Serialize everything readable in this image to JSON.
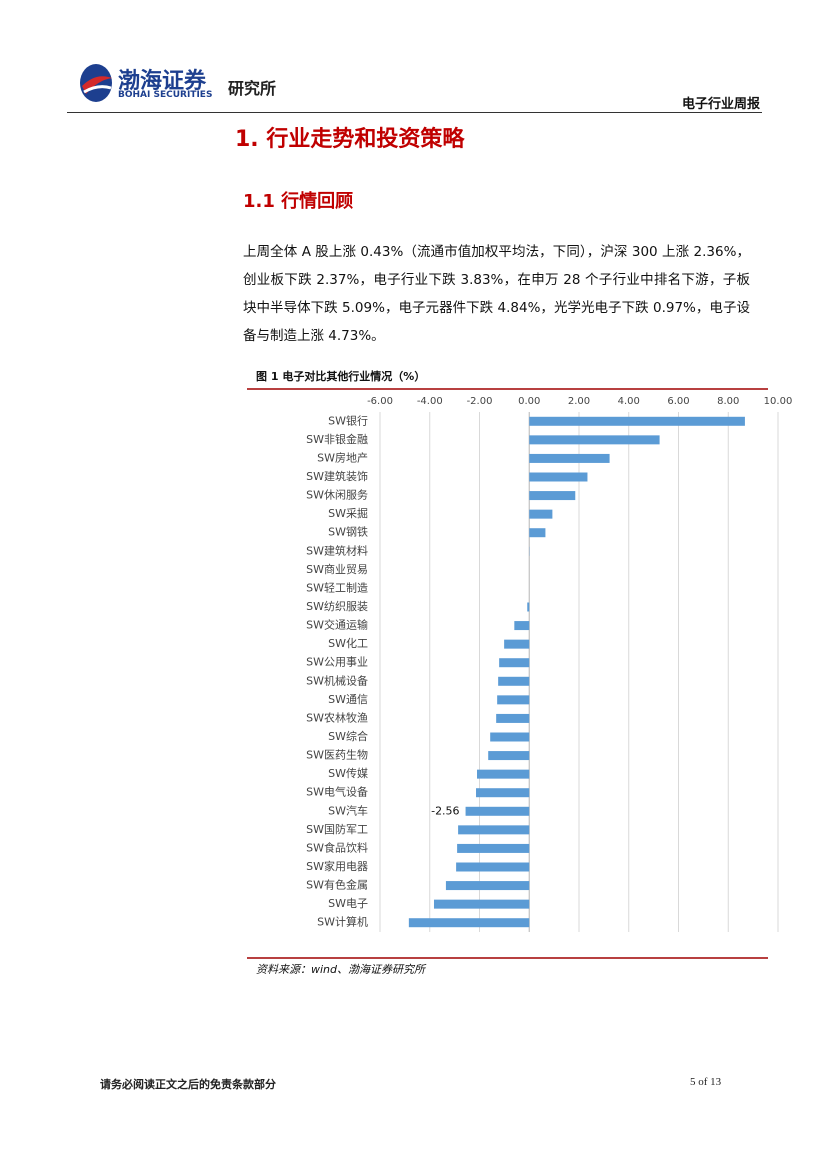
{
  "header": {
    "logo_name": "渤海证券",
    "logo_english": "BOHAI SECURITIES",
    "institute": "研究所",
    "report_type": "电子行业周报"
  },
  "section": {
    "title": "1. 行业走势和投资策略",
    "subtitle": "1.1 行情回顾",
    "paragraph": "上周全体 A 股上涨 0.43%（流通市值加权平均法，下同），沪深 300 上涨 2.36%，创业板下跌 2.37%，电子行业下跌 3.83%，在申万 28 个子行业中排名下游，子板块中半导体下跌 5.09%，电子元器件下跌 4.84%，光学光电子下跌 0.97%，电子设备与制造上涨 4.73%。"
  },
  "chart_data": {
    "type": "bar",
    "orientation": "horizontal",
    "title": "图 1 电子对比其他行业情况（%）",
    "color": "#5b9bd5",
    "grid": true,
    "categories": [
      "SW银行",
      "SW非银金融",
      "SW房地产",
      "SW建筑装饰",
      "SW休闲服务",
      "SW采掘",
      "SW钢铁",
      "SW建筑材料",
      "SW商业贸易",
      "SW轻工制造",
      "SW纺织服装",
      "SW交通运输",
      "SW化工",
      "SW公用事业",
      "SW机械设备",
      "SW通信",
      "SW农林牧渔",
      "SW综合",
      "SW医药生物",
      "SW传媒",
      "SW电气设备",
      "SW汽车",
      "SW国防军工",
      "SW食品饮料",
      "SW家用电器",
      "SW有色金属",
      "SW电子",
      "SW计算机"
    ],
    "values": [
      8.67,
      5.24,
      3.23,
      2.34,
      1.85,
      0.93,
      0.65,
      0.01,
      0,
      0,
      -0.08,
      -0.6,
      -1.01,
      -1.21,
      -1.25,
      -1.29,
      -1.33,
      -1.57,
      -1.65,
      -2.1,
      -2.14,
      -2.56,
      -2.86,
      -2.9,
      -2.94,
      -3.35,
      -3.83,
      -4.84
    ],
    "value_labels": [
      null,
      null,
      null,
      null,
      null,
      null,
      null,
      null,
      null,
      null,
      null,
      null,
      null,
      null,
      null,
      null,
      null,
      null,
      null,
      null,
      null,
      "-2.56",
      null,
      null,
      null,
      null,
      null,
      null
    ],
    "xlim": [
      -6,
      10
    ],
    "xticks": [
      {
        "value": -6,
        "label": "-6.00"
      },
      {
        "value": -4,
        "label": "-4.00"
      },
      {
        "value": -2,
        "label": "-2.00"
      },
      {
        "value": 0,
        "label": "0.00"
      },
      {
        "value": 2,
        "label": "2.00"
      },
      {
        "value": 4,
        "label": "4.00"
      },
      {
        "value": 6,
        "label": "6.00"
      },
      {
        "value": 8,
        "label": "8.00"
      },
      {
        "value": 10,
        "label": "10.00"
      }
    ],
    "source": "资料来源：wind、渤海证券研究所"
  },
  "footer": {
    "disclaimer": "请务必阅读正文之后的免责条款部分",
    "page": "5 of 13"
  }
}
